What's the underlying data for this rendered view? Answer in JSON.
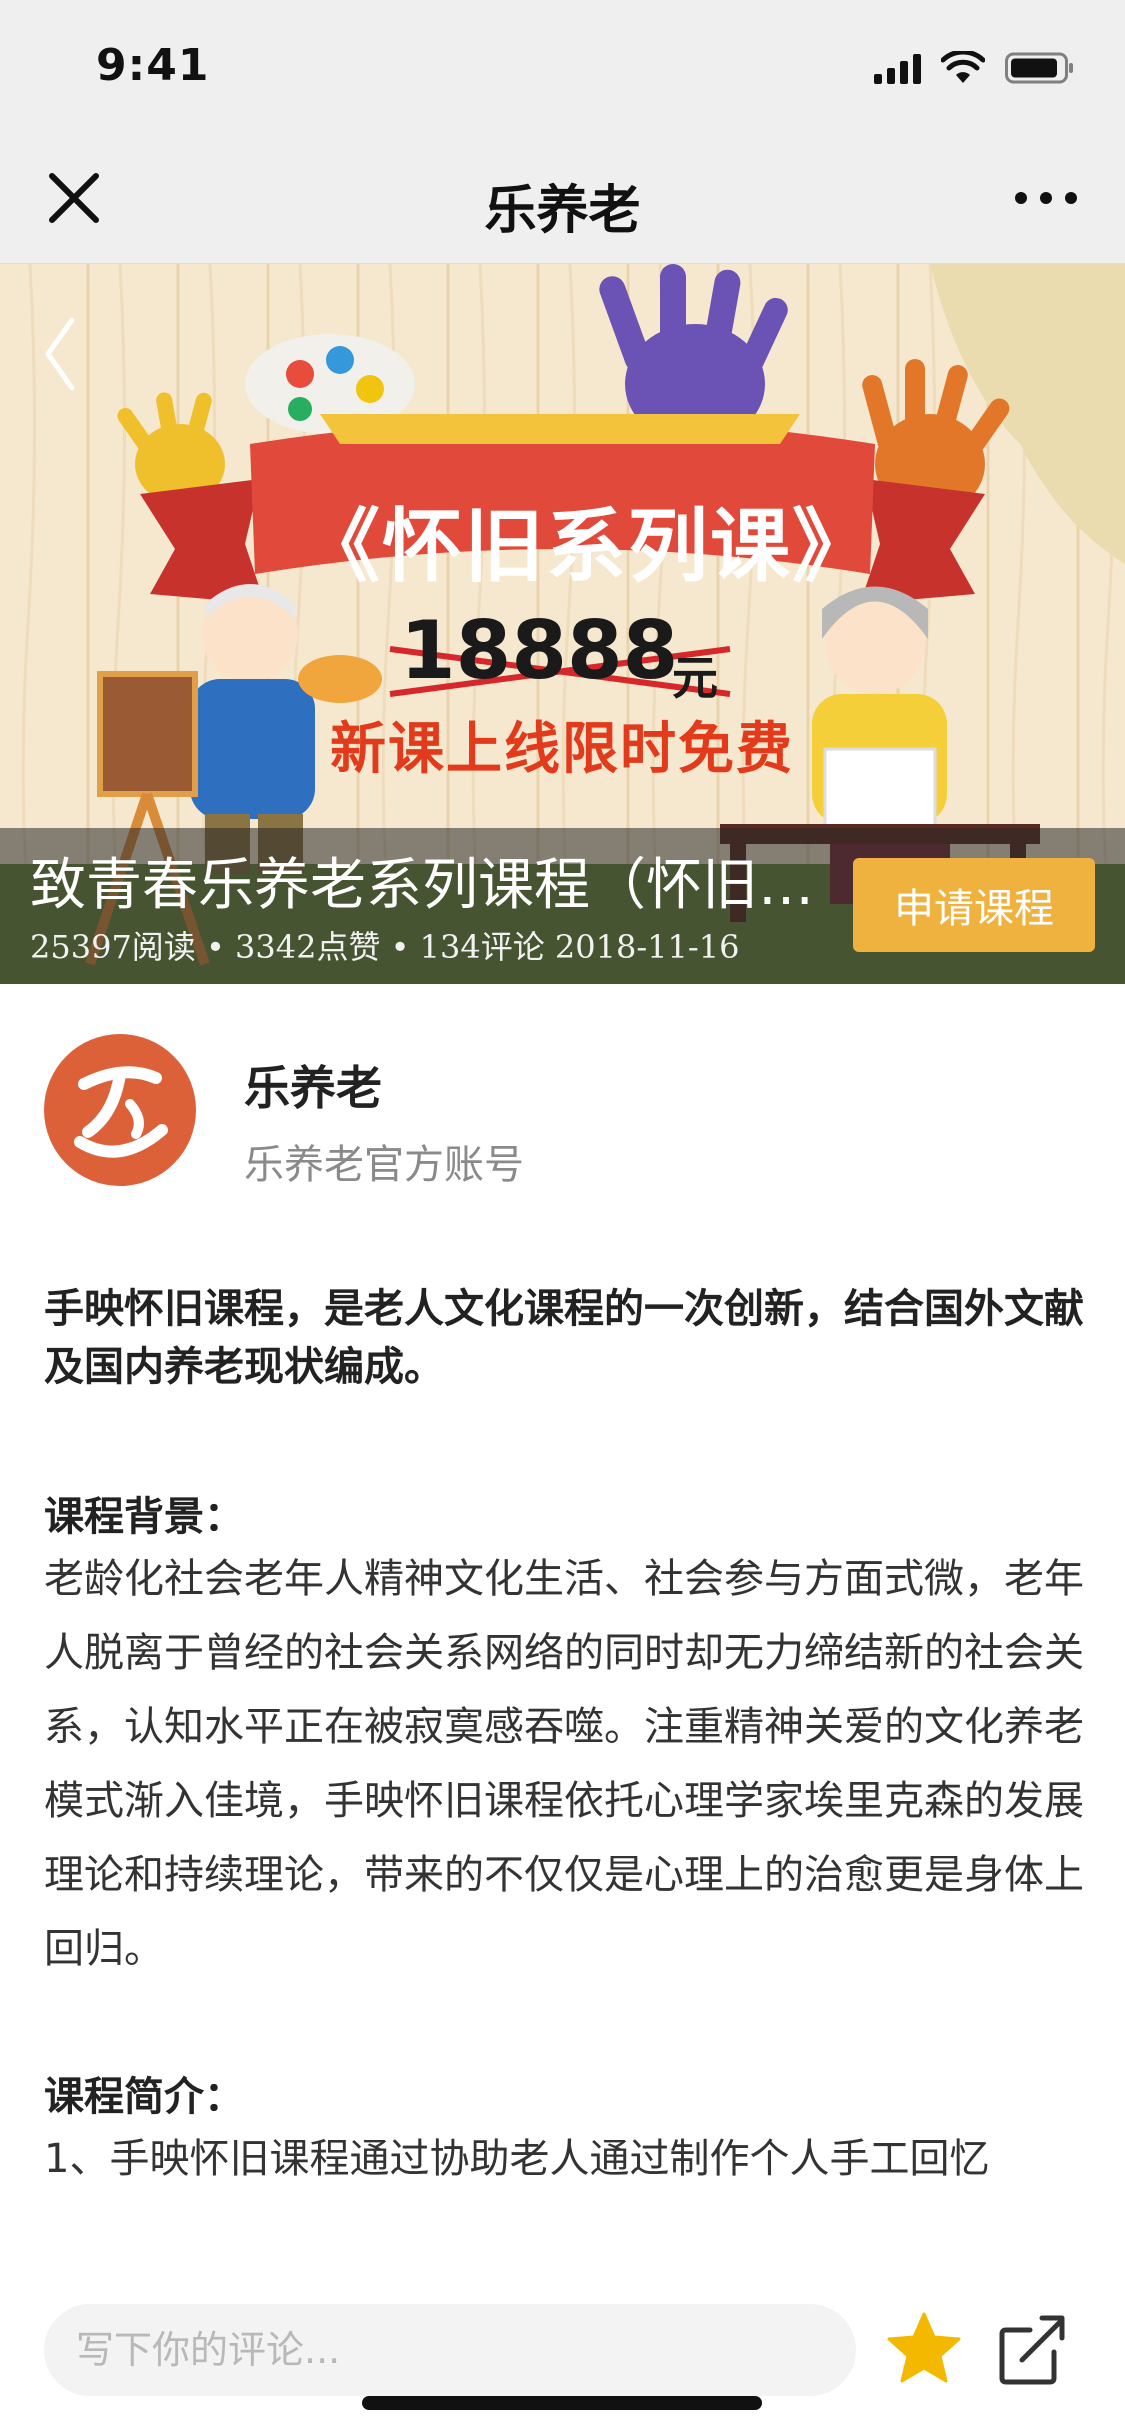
{
  "status_bar": {
    "time": "9:41"
  },
  "nav": {
    "title": "乐养老"
  },
  "banner": {
    "ribbon_text": "《怀旧系列课》",
    "strike_price": "18888",
    "strike_unit": "元",
    "promo_text": "新课上线限时免费",
    "title": "致青春乐养老系列课程（怀旧…",
    "meta": "25397阅读 • 3342点赞 • 134评论 2018-11-16",
    "apply_label": "申请课程"
  },
  "author": {
    "name": "乐养老",
    "subtitle": "乐养老官方账号"
  },
  "article": {
    "lead": "手映怀旧课程，是老人文化课程的一次创新，结合国外文献及国内养老现状编成。",
    "background_heading": "课程背景：",
    "background_body": "老龄化社会老年人精神文化生活、社会参与方面式微，老年人脱离于曾经的社会关系网络的同时却无力缔结新的社会关系，认知水平正在被寂寞感吞噬。注重精神关爱的文化养老模式渐入佳境，手映怀旧课程依托心理学家埃里克森的发展理论和持续理论，带来的不仅仅是心理上的治愈更是身体上回归。",
    "intro_heading": "课程简介：",
    "intro_body": "1、手映怀旧课程通过协助老人通过制作个人手工回忆"
  },
  "bottom_bar": {
    "comment_placeholder": "写下你的评论..."
  },
  "icons": {
    "close": "close-icon",
    "more": "more-icon",
    "back": "chevron-left-icon",
    "star": "star-icon",
    "share": "share-icon"
  },
  "colors": {
    "accent": "#f0b23f",
    "avatar": "#dd6138",
    "star": "#f5b800"
  }
}
